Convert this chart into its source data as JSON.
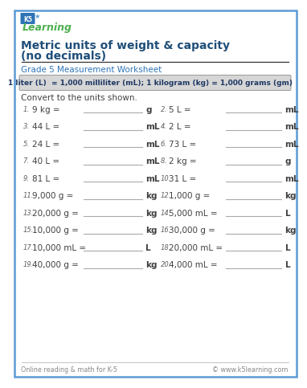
{
  "title_line1": "Metric units of weight & capacity",
  "title_line2": "(no decimals)",
  "subtitle": "Grade 5 Measurement Worksheet",
  "info_line1": "1 liter (L)  = 1,000 milliliter (mL); 1 kilogram (kg) = 1,000 grams (gm)",
  "instruction": "Convert to the units shown.",
  "problems": [
    [
      "1.",
      "9 kg =",
      "g",
      "2.",
      "5 L =",
      "mL"
    ],
    [
      "3.",
      "44 L =",
      "mL",
      "4.",
      "2 L =",
      "mL"
    ],
    [
      "5.",
      "24 L =",
      "mL",
      "6.",
      "73 L =",
      "mL"
    ],
    [
      "7.",
      "40 L =",
      "mL",
      "8.",
      "2 kg =",
      "g"
    ],
    [
      "9.",
      "81 L =",
      "mL",
      "10.",
      "31 L =",
      "mL"
    ],
    [
      "11.",
      "9,000 g =",
      "kg",
      "12.",
      "1,000 g =",
      "kg"
    ],
    [
      "13.",
      "20,000 g =",
      "kg",
      "14.",
      "5,000 mL =",
      "L"
    ],
    [
      "15.",
      "10,000 g =",
      "kg",
      "16.",
      "30,000 g =",
      "kg"
    ],
    [
      "17.",
      "10,000 mL =",
      "L",
      "18.",
      "20,000 mL =",
      "L"
    ],
    [
      "19.",
      "40,000 g =",
      "kg",
      "20.",
      "4,000 mL =",
      "L"
    ]
  ],
  "footer_left": "Online reading & math for K-5",
  "footer_right": "© www.k5learning.com",
  "bg_color": "#ffffff",
  "border_color": "#5b9bd5",
  "title_color": "#1f4e79",
  "subtitle_color": "#2e74b5",
  "info_box_bg": "#d6d6d6",
  "info_box_border": "#999999",
  "info_text_color": "#1f3864",
  "problem_color": "#404040",
  "num_color": "#606060",
  "line_color": "#aaaaaa",
  "footer_color": "#888888",
  "divider_color": "#333333"
}
